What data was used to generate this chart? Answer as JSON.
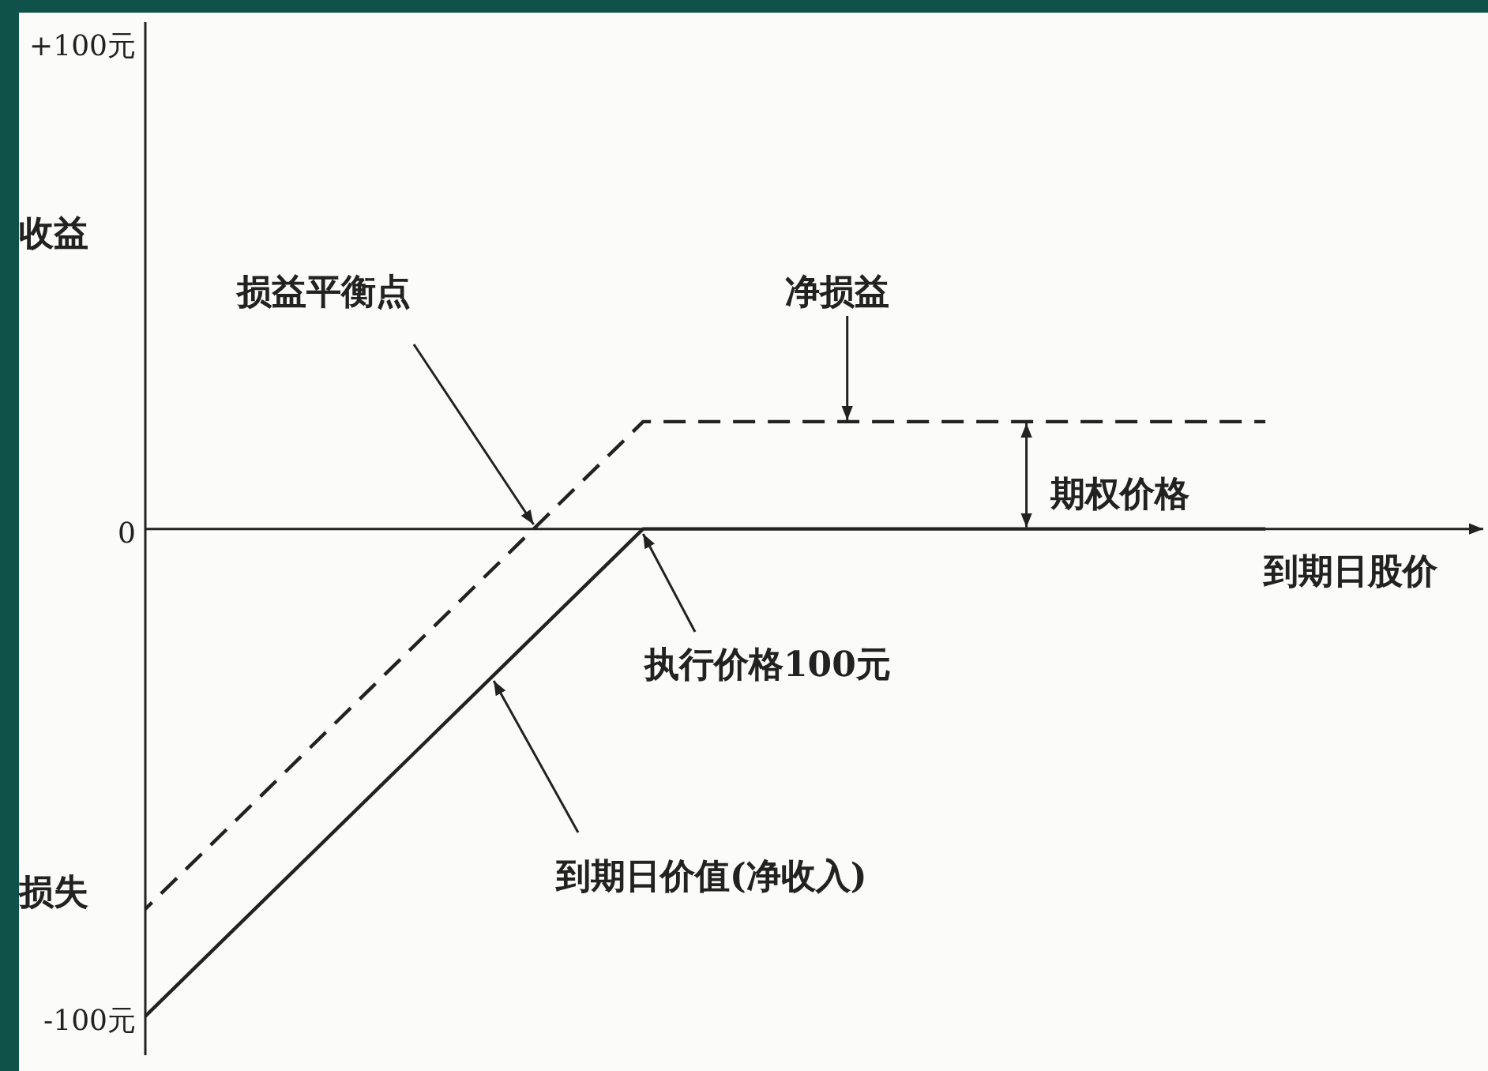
{
  "chart_data": {
    "type": "line",
    "xlabel": "到期日股价",
    "ylim": [
      -108,
      104
    ],
    "categories": [
      null,
      null,
      null,
      null,
      null,
      null,
      null,
      null,
      null,
      null
    ],
    "yticks": [
      {
        "value": 100,
        "label": "+100元"
      },
      {
        "value": 0,
        "label": "0"
      },
      {
        "value": -100,
        "label": "-100元"
      }
    ],
    "tick_labels": "y",
    "marker": "none",
    "series": [
      {
        "color": "#222222",
        "line_style": "solid",
        "values": [
          -100,
          -75,
          -50,
          -25,
          0,
          0,
          0,
          0,
          0,
          0
        ]
      },
      {
        "color": "#222222",
        "line_style": "dashed",
        "values": [
          -78,
          -53,
          -28,
          -3,
          22,
          22,
          22,
          22,
          22,
          22
        ]
      }
    ],
    "annotations": [
      "收益",
      "损失",
      "损益平衡点",
      {
        "text": "净损益",
        "y": 22
      },
      {
        "text": "期权价格",
        "y": 22
      },
      "执行价格100元",
      "到期日价值(净收入)"
    ]
  }
}
